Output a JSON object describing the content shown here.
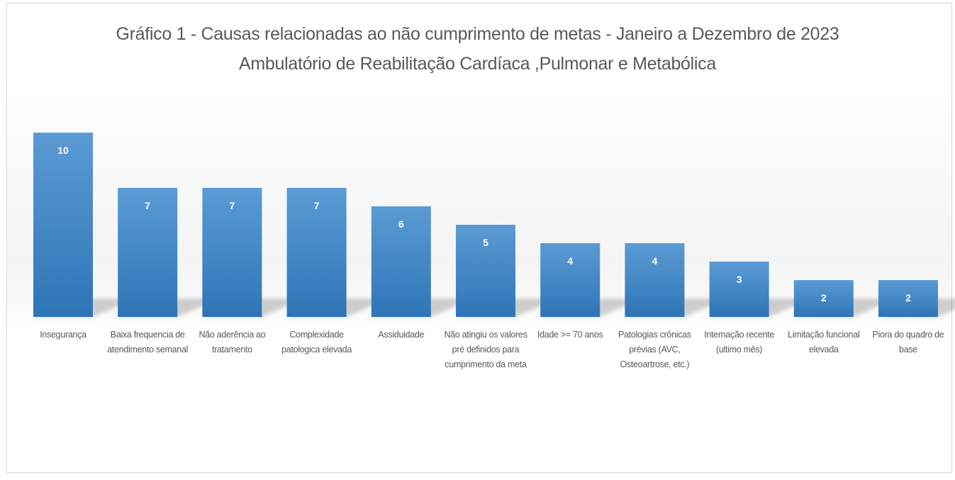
{
  "chart_data": {
    "type": "bar",
    "title": "Gráfico 1 - Causas relacionadas ao não cumprimento de metas - Janeiro a Dezembro de 2023",
    "subtitle": "Ambulatório de Reabilitação Cardíaca ,Pulmonar e Metabólica",
    "categories": [
      "Insegurança",
      "Baixa frequencia de atendimento semanal",
      "Não aderência ao tratamento",
      "Complexidade patologica elevada",
      "Assiduidade",
      "Não atingiu os valores pré definidos para cumprimento da meta",
      "Idade >= 70 anos",
      "Patologias crônicas prévias (AVC, Osteoartrose, etc.)",
      "Internação recente (ultimo mês)",
      "Limitação funcional elevada",
      "Piora do quadro de base"
    ],
    "values": [
      10,
      7,
      7,
      7,
      6,
      5,
      4,
      4,
      3,
      2,
      2
    ],
    "data_labels": [
      "10",
      "7",
      "7",
      "7",
      "6",
      "5",
      "4",
      "4",
      "3",
      "2",
      "2"
    ],
    "ylim": [
      0,
      10
    ],
    "grid": false,
    "legend": "none",
    "bar_color": "#2e75b6",
    "bar_color_light": "#5b9bd5",
    "label_color": "#ffffff",
    "text_color": "#595959"
  }
}
